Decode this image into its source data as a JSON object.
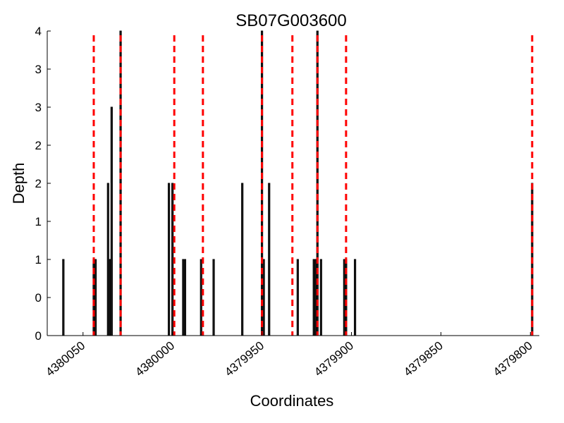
{
  "chart_data": {
    "type": "bar",
    "title": "SB07G003600",
    "xlabel": "Coordinates",
    "ylabel": "Depth",
    "x_axis_reversed": true,
    "xlim": [
      4380070,
      4379795
    ],
    "ylim": [
      0,
      4
    ],
    "y_tick_labels": [
      "0",
      "0",
      "1",
      "1",
      "2",
      "2",
      "3",
      "3",
      "4"
    ],
    "x_ticks": [
      4380050,
      4380000,
      4379950,
      4379900,
      4379850,
      4379800
    ],
    "x_tick_labels": [
      "4380050",
      "4380000",
      "4379950",
      "4379900",
      "4379850",
      "4379800"
    ],
    "bar_color": "#000000",
    "bar_fill_color": "#222222",
    "vline_color": "#ff0000",
    "grid": false,
    "bars": [
      {
        "x": 4380061,
        "depth": 1
      },
      {
        "x": 4380044,
        "depth": 1
      },
      {
        "x": 4380043,
        "depth": 1
      },
      {
        "x": 4380036,
        "depth": 2
      },
      {
        "x": 4380035,
        "depth": 1
      },
      {
        "x": 4380034,
        "depth": 3
      },
      {
        "x": 4380029,
        "depth": 4
      },
      {
        "x": 4380002,
        "depth": 2
      },
      {
        "x": 4380000,
        "depth": 2
      },
      {
        "x": 4379994,
        "depth": 1
      },
      {
        "x": 4379993,
        "depth": 1
      },
      {
        "x": 4379984,
        "depth": 1
      },
      {
        "x": 4379977,
        "depth": 1
      },
      {
        "x": 4379961,
        "depth": 2
      },
      {
        "x": 4379950,
        "depth": 4
      },
      {
        "x": 4379949,
        "depth": 1
      },
      {
        "x": 4379946,
        "depth": 2
      },
      {
        "x": 4379930,
        "depth": 1
      },
      {
        "x": 4379921,
        "depth": 1
      },
      {
        "x": 4379920,
        "depth": 1
      },
      {
        "x": 4379919,
        "depth": 4
      },
      {
        "x": 4379917,
        "depth": 1
      },
      {
        "x": 4379904,
        "depth": 1
      },
      {
        "x": 4379903,
        "depth": 1
      },
      {
        "x": 4379898,
        "depth": 1
      },
      {
        "x": 4379799,
        "depth": 2
      }
    ],
    "vlines": [
      4380044,
      4380029,
      4379999,
      4379983,
      4379950,
      4379933,
      4379919,
      4379903,
      4379799
    ]
  }
}
